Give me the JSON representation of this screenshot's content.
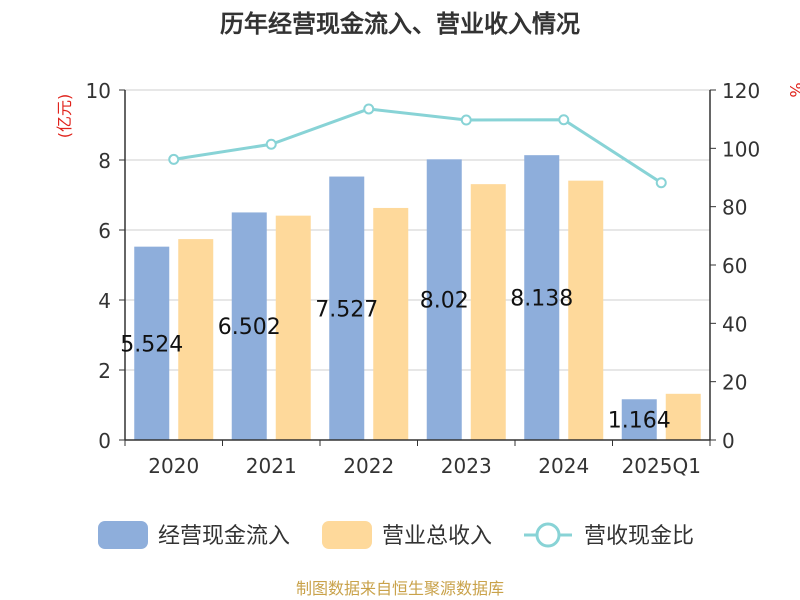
{
  "chart_data": {
    "type": "bar",
    "title": "历年经营现金流入、营业收入情况",
    "categories": [
      "2020",
      "2021",
      "2022",
      "2023",
      "2024",
      "2025Q1"
    ],
    "series": [
      {
        "name": "经营现金流入",
        "values": [
          5.524,
          6.502,
          7.527,
          8.02,
          8.138,
          1.164
        ],
        "data_labels": [
          "5.524",
          "6.502",
          "7.527",
          "8.02",
          "8.138",
          "1.164"
        ],
        "color": "#8eaedb",
        "axis": "left"
      },
      {
        "name": "营业总收入",
        "values": [
          5.74,
          6.41,
          6.63,
          7.31,
          7.41,
          1.32
        ],
        "color": "#fed99b",
        "axis": "left"
      },
      {
        "name": "营收现金比",
        "type": "line",
        "values": [
          96.2,
          101.4,
          113.5,
          109.7,
          109.8,
          88.2
        ],
        "color": "#88d3d6",
        "axis": "right"
      }
    ],
    "y_left": {
      "label": "(亿元)",
      "min": 0,
      "max": 10,
      "ticks": [
        "0",
        "2",
        "4",
        "6",
        "8",
        "10"
      ]
    },
    "y_right": {
      "label": "%",
      "min": 0,
      "max": 120,
      "ticks": [
        "0",
        "20",
        "40",
        "60",
        "80",
        "100",
        "120"
      ]
    },
    "grid": true,
    "legend_position": "bottom",
    "footer": "制图数据来自恒生聚源数据库",
    "colors": {
      "axis_label": "#e0231c",
      "footer": "#c9a24a",
      "grid": "#cfcfcf",
      "axis": "#333333"
    }
  }
}
